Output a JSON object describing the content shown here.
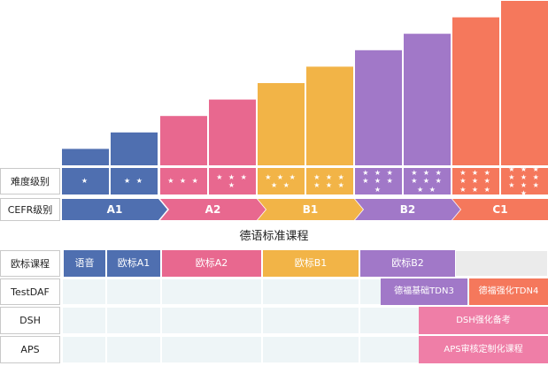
{
  "chart_data": {
    "type": "bar",
    "categories": [
      "1",
      "2",
      "3",
      "4",
      "5",
      "6",
      "7",
      "8",
      "9",
      "10"
    ],
    "values": [
      1,
      2,
      3,
      4,
      5,
      6,
      7,
      8,
      9,
      10
    ],
    "colors": [
      "#4f6fb0",
      "#4f6fb0",
      "#e8688f",
      "#e8688f",
      "#f2b447",
      "#f2b447",
      "#a178c8",
      "#a178c8",
      "#f5785c",
      "#f5785c"
    ],
    "title": "",
    "xlabel": "",
    "ylabel": ""
  },
  "rows": {
    "difficulty_label": "难度级别",
    "cefr_label": "CEFR级别",
    "difficulty_stars": [
      "★",
      "★ ★",
      "★ ★ ★",
      "★ ★ ★ ★",
      "★ ★ ★ ★ ★",
      "★ ★ ★ ★ ★ ★",
      "★ ★ ★ ★ ★ ★ ★",
      "★ ★ ★ ★ ★ ★ ★ ★",
      "★ ★ ★ ★ ★ ★ ★ ★ ★",
      "★ ★ ★ ★ ★ ★ ★ ★ ★ ★"
    ]
  },
  "cefr_levels": [
    {
      "label": "A1",
      "color": "#4f6fb0"
    },
    {
      "label": "A2",
      "color": "#e8688f"
    },
    {
      "label": "B1",
      "color": "#f2b447"
    },
    {
      "label": "B2",
      "color": "#a178c8"
    },
    {
      "label": "C1",
      "color": "#f5785c"
    }
  ],
  "course_title": "德语标准课程",
  "table": {
    "row_labels": [
      "欧标课程",
      "TestDAF",
      "DSH",
      "APS"
    ],
    "europe_courses": [
      {
        "label": "语音",
        "color": "#4f6fb0"
      },
      {
        "label": "欧标A1",
        "color": "#4f6fb0"
      },
      {
        "label": "欧标A2",
        "color": "#e8688f"
      },
      {
        "label": "欧标B1",
        "color": "#f2b447"
      },
      {
        "label": "欧标B2",
        "color": "#a178c8"
      }
    ],
    "testdaf_courses": [
      {
        "label": "德福基础TDN3",
        "color": "#a178c8"
      },
      {
        "label": "德福强化TDN4",
        "color": "#f5785c"
      }
    ],
    "dsh_course": {
      "label": "DSH强化备考",
      "color": "#ef7ea7"
    },
    "aps_course": {
      "label": "APS审核定制化课程",
      "color": "#ef7ea7"
    }
  }
}
